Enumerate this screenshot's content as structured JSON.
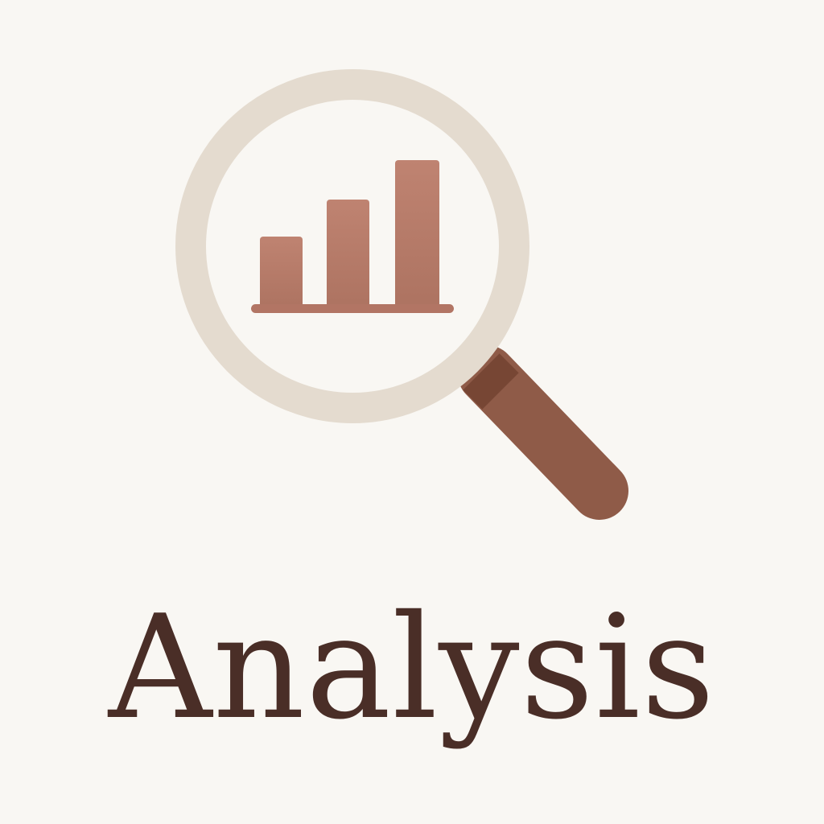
{
  "caption": {
    "text": "Analysis"
  },
  "icon": {
    "name": "magnifier-bar-chart-icon",
    "colors": {
      "background": "#f9f7f3",
      "lens_ring": "#e4dbcf",
      "bars": "#b87d6c",
      "handle": "#8f5b48",
      "handle_collar": "#774634",
      "text": "#4a2e27"
    }
  }
}
